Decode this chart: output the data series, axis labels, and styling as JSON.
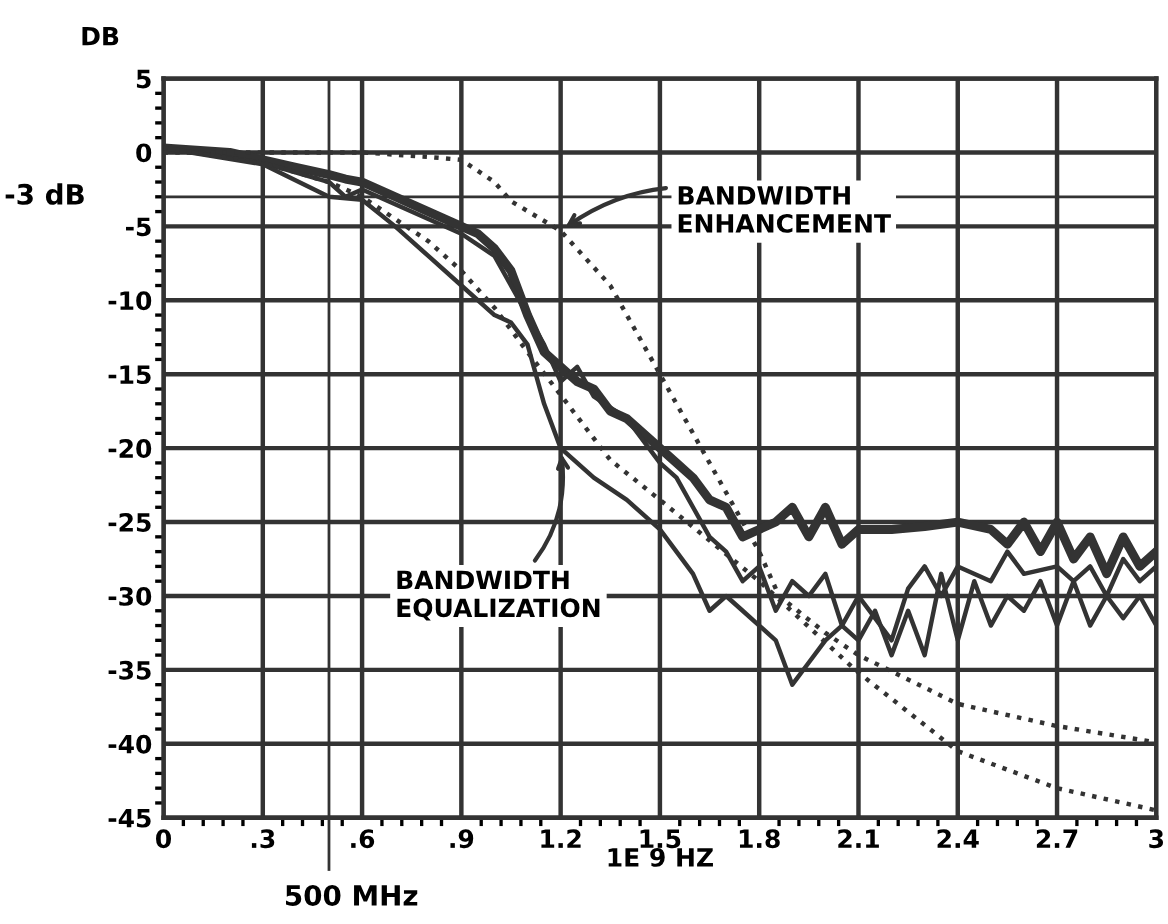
{
  "chart_data": {
    "type": "line",
    "xlabel": "1E 9 HZ",
    "ylabel": "DB",
    "xlim": [
      0,
      3
    ],
    "ylim": [
      -45,
      5
    ],
    "xticks": [
      0,
      {
        "value": 0.3,
        "label": ".3"
      },
      {
        "value": 0.6,
        "label": ".6"
      },
      {
        "value": 0.9,
        "label": ".9"
      },
      {
        "value": 1.2,
        "label": "1.2"
      },
      {
        "value": 1.5,
        "label": "1.5"
      },
      {
        "value": 1.8,
        "label": "1.8"
      },
      {
        "value": 2.1,
        "label": "2.1"
      },
      {
        "value": 2.4,
        "label": "2.4"
      },
      {
        "value": 2.7,
        "label": "2.7"
      },
      3
    ],
    "yticks": [
      -45,
      -40,
      -35,
      -30,
      -25,
      -20,
      -15,
      -10,
      -5,
      0,
      5
    ],
    "grid": true,
    "marker": "none",
    "series": [
      {
        "color": "#333333",
        "line_style": "solid",
        "x": [
          0,
          0.2,
          0.4,
          0.5,
          0.55,
          0.6,
          0.7,
          0.8,
          0.9,
          0.95,
          1.0,
          1.05,
          1.1,
          1.15,
          1.2,
          1.25,
          1.3,
          1.35,
          1.4,
          1.5,
          1.55,
          1.6,
          1.65,
          1.7,
          1.75,
          1.8,
          1.85,
          1.9,
          1.95,
          2.0,
          2.05,
          2.1,
          2.2,
          2.3,
          2.4,
          2.5,
          2.55,
          2.6,
          2.65,
          2.7,
          2.75,
          2.8,
          2.85,
          2.9,
          2.95,
          3.0
        ],
        "values": [
          0.3,
          0,
          -1,
          -1.5,
          -1.8,
          -2,
          -3,
          -4,
          -5,
          -5.5,
          -6.5,
          -8,
          -11,
          -13.5,
          -14.5,
          -15.5,
          -16,
          -17.5,
          -18,
          -20,
          -21,
          -22,
          -23.5,
          -24,
          -26,
          -25.5,
          -25,
          -24,
          -26,
          -24,
          -26.5,
          -25.5,
          -25.5,
          -25.3,
          -25,
          -25.5,
          -26.5,
          -25,
          -27,
          -25,
          -27.5,
          -26,
          -28.5,
          -26,
          -28,
          -27
        ]
      },
      {
        "color": "#333333",
        "line_style": "solid",
        "x": [
          0,
          0.3,
          0.5,
          0.55,
          0.6,
          0.7,
          0.8,
          0.9,
          1.0,
          1.1,
          1.15,
          1.2,
          1.25,
          1.3,
          1.4,
          1.5,
          1.55,
          1.6,
          1.65,
          1.7,
          1.75,
          1.8,
          1.85,
          1.9,
          1.95,
          2.0,
          2.05,
          2.1,
          2.15,
          2.2,
          2.25,
          2.3,
          2.35,
          2.4,
          2.5,
          2.55,
          2.6,
          2.7,
          2.75,
          2.8,
          2.85,
          2.9,
          2.95,
          3.0
        ],
        "values": [
          0.3,
          -0.7,
          -2,
          -3,
          -2.5,
          -3.5,
          -4.5,
          -5.5,
          -7,
          -11,
          -13,
          -15.5,
          -14.5,
          -16.5,
          -18,
          -21,
          -22,
          -24,
          -26,
          -27,
          -29,
          -28,
          -31,
          -29,
          -30,
          -28.5,
          -32,
          -30,
          -31.5,
          -33,
          -29.5,
          -28,
          -30,
          -28,
          -29,
          -27,
          -28.5,
          -28,
          -29,
          -28,
          -30,
          -27.5,
          -29,
          -28
        ]
      },
      {
        "color": "#333333",
        "line_style": "solid",
        "x": [
          0,
          0.3,
          0.5,
          0.6,
          0.7,
          0.8,
          0.9,
          1.0,
          1.05,
          1.1,
          1.15,
          1.2,
          1.3,
          1.4,
          1.5,
          1.6,
          1.65,
          1.7,
          1.75,
          1.8,
          1.85,
          1.9,
          1.95,
          2.0,
          2.05,
          2.1,
          2.15,
          2.2,
          2.25,
          2.3,
          2.35,
          2.4,
          2.45,
          2.5,
          2.55,
          2.6,
          2.65,
          2.7,
          2.75,
          2.8,
          2.85,
          2.9,
          2.95,
          3.0
        ],
        "values": [
          0.3,
          -0.8,
          -3,
          -3.2,
          -5,
          -7,
          -9,
          -11,
          -11.5,
          -13,
          -17,
          -20,
          -22,
          -23.5,
          -25.5,
          -28.5,
          -31,
          -30,
          -31,
          -32,
          -33,
          -36,
          -34.5,
          -33,
          -32,
          -33,
          -31,
          -34,
          -31,
          -34,
          -28.5,
          -33,
          -29,
          -32,
          -30,
          -31,
          -29,
          -32,
          -29,
          -32,
          -30,
          -31.5,
          -30,
          -32
        ]
      },
      {
        "color": "#333333",
        "line_style": "dotted",
        "x": [
          0,
          0.6,
          0.8,
          0.9,
          1.0,
          1.05,
          1.2,
          1.35,
          1.5,
          1.6,
          1.7,
          1.8,
          1.86,
          2.0,
          2.1,
          2.4,
          2.7,
          3.0
        ],
        "values": [
          0,
          0,
          -0.3,
          -0.5,
          -2,
          -3.3,
          -5.3,
          -9,
          -15,
          -19,
          -23,
          -27,
          -30,
          -32.5,
          -34,
          -37.3,
          -38.8,
          -39.9
        ]
      },
      {
        "color": "#333333",
        "line_style": "dotted",
        "x": [
          0,
          0.3,
          0.5,
          0.6,
          0.7,
          0.8,
          0.9,
          1.0,
          1.1,
          1.2,
          1.35,
          1.5,
          1.8,
          2.09,
          2.4,
          2.7,
          3.0
        ],
        "values": [
          0.3,
          -0.7,
          -2,
          -3,
          -4.5,
          -6,
          -8,
          -10.5,
          -13.5,
          -16.4,
          -20.8,
          -23.5,
          -29,
          -35,
          -40.5,
          -43,
          -44.5
        ]
      }
    ],
    "ref_lines": [
      {
        "axis": "y",
        "value": -3,
        "label": "-3 dB"
      },
      {
        "axis": "x",
        "value": 0.5,
        "label": "500 MHz"
      }
    ],
    "annotations": [
      {
        "text": "BANDWIDTH\nENHANCEMENT",
        "x": 1.2,
        "y": -5.3
      },
      {
        "text": "BANDWIDTH\nEQUALIZATION",
        "x": 1.2,
        "y": -20
      }
    ]
  }
}
